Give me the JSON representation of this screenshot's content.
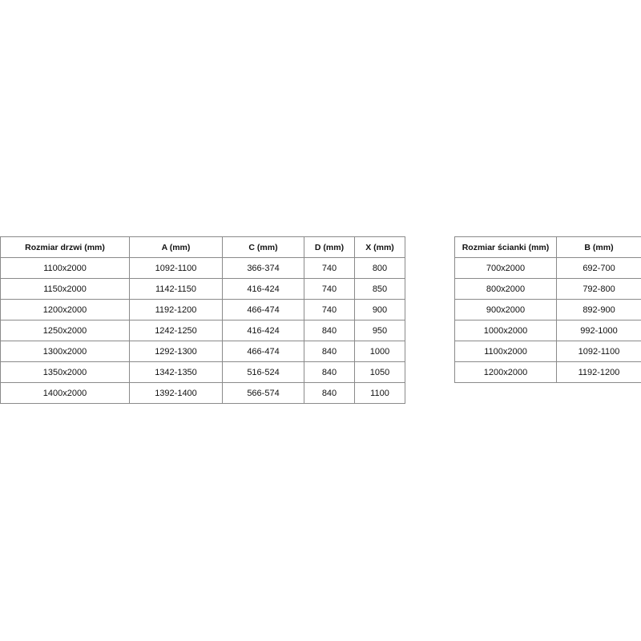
{
  "door_table": {
    "headers": [
      "Rozmiar drzwi (mm)",
      "A (mm)",
      "C (mm)",
      "D (mm)",
      "X (mm)"
    ],
    "rows": [
      [
        "1100x2000",
        "1092-1100",
        "366-374",
        "740",
        "800"
      ],
      [
        "1150x2000",
        "1142-1150",
        "416-424",
        "740",
        "850"
      ],
      [
        "1200x2000",
        "1192-1200",
        "466-474",
        "740",
        "900"
      ],
      [
        "1250x2000",
        "1242-1250",
        "416-424",
        "840",
        "950"
      ],
      [
        "1300x2000",
        "1292-1300",
        "466-474",
        "840",
        "1000"
      ],
      [
        "1350x2000",
        "1342-1350",
        "516-524",
        "840",
        "1050"
      ],
      [
        "1400x2000",
        "1392-1400",
        "566-574",
        "840",
        "1100"
      ]
    ]
  },
  "wall_table": {
    "headers": [
      "Rozmiar ścianki (mm)",
      "B (mm)"
    ],
    "rows": [
      [
        "700x2000",
        "692-700"
      ],
      [
        "800x2000",
        "792-800"
      ],
      [
        "900x2000",
        "892-900"
      ],
      [
        "1000x2000",
        "992-1000"
      ],
      [
        "1100x2000",
        "1092-1100"
      ],
      [
        "1200x2000",
        "1192-1200"
      ]
    ]
  }
}
